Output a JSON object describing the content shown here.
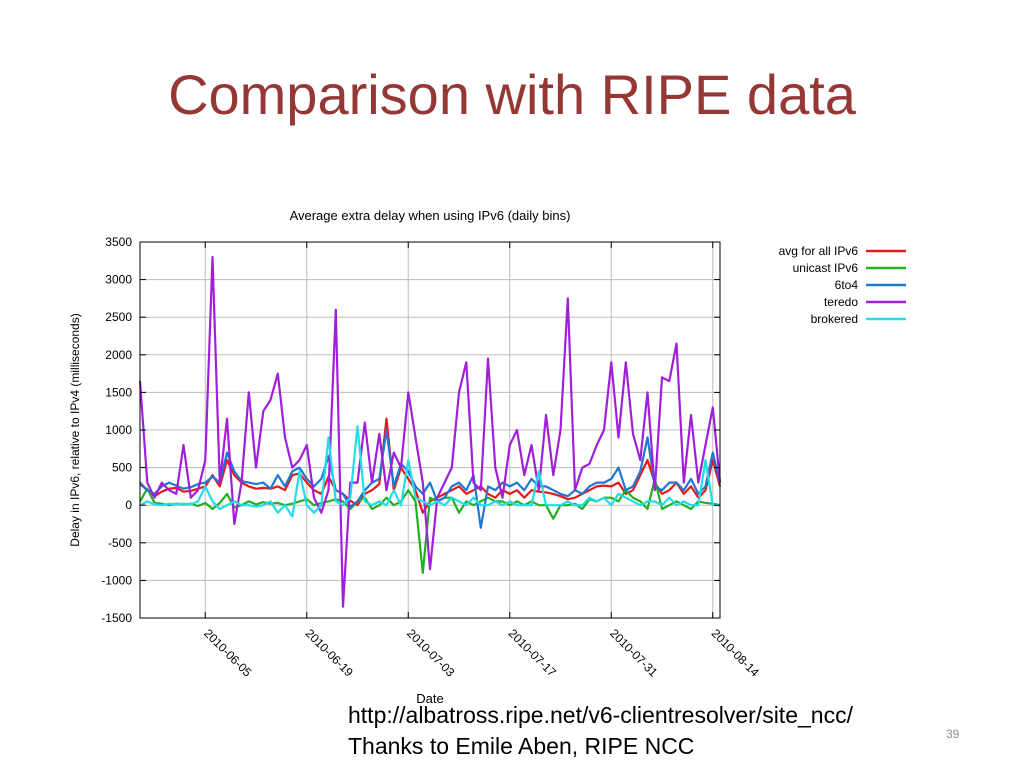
{
  "slide": {
    "title": "Comparison with RIPE data",
    "source_url": "http://albatross.ripe.net/v6-clientresolver/site_ncc/",
    "credit": "Thanks to Emile Aben, RIPE NCC",
    "page_number": "39"
  },
  "chart_data": {
    "type": "line",
    "title": "Average extra delay when using IPv6  (daily bins)",
    "xlabel": "Date",
    "ylabel": "Delay in IPv6, relative to IPv4  (milliseconds)",
    "ylim": [
      -1500,
      3500
    ],
    "yticks": [
      -1500,
      -1000,
      -500,
      0,
      500,
      1000,
      1500,
      2000,
      2500,
      3000,
      3500
    ],
    "xlim": [
      "2010-05-27",
      "2010-08-15"
    ],
    "xticks": [
      "2010-06-05",
      "2010-06-19",
      "2010-07-03",
      "2010-07-17",
      "2010-07-31",
      "2010-08-14"
    ],
    "grid": true,
    "legend": "right",
    "x": [
      "2010-05-27",
      "2010-05-28",
      "2010-05-29",
      "2010-05-30",
      "2010-05-31",
      "2010-06-01",
      "2010-06-02",
      "2010-06-03",
      "2010-06-04",
      "2010-06-05",
      "2010-06-06",
      "2010-06-07",
      "2010-06-08",
      "2010-06-09",
      "2010-06-10",
      "2010-06-11",
      "2010-06-12",
      "2010-06-13",
      "2010-06-14",
      "2010-06-15",
      "2010-06-16",
      "2010-06-17",
      "2010-06-18",
      "2010-06-19",
      "2010-06-20",
      "2010-06-21",
      "2010-06-22",
      "2010-06-23",
      "2010-06-24",
      "2010-06-25",
      "2010-06-26",
      "2010-06-27",
      "2010-06-28",
      "2010-06-29",
      "2010-06-30",
      "2010-07-01",
      "2010-07-02",
      "2010-07-03",
      "2010-07-04",
      "2010-07-05",
      "2010-07-06",
      "2010-07-07",
      "2010-07-08",
      "2010-07-09",
      "2010-07-10",
      "2010-07-11",
      "2010-07-12",
      "2010-07-13",
      "2010-07-14",
      "2010-07-15",
      "2010-07-16",
      "2010-07-17",
      "2010-07-18",
      "2010-07-19",
      "2010-07-20",
      "2010-07-21",
      "2010-07-22",
      "2010-07-23",
      "2010-07-24",
      "2010-07-25",
      "2010-07-26",
      "2010-07-27",
      "2010-07-28",
      "2010-07-29",
      "2010-07-30",
      "2010-07-31",
      "2010-08-01",
      "2010-08-02",
      "2010-08-03",
      "2010-08-04",
      "2010-08-05",
      "2010-08-06",
      "2010-08-07",
      "2010-08-08",
      "2010-08-09",
      "2010-08-10",
      "2010-08-11",
      "2010-08-12",
      "2010-08-13",
      "2010-08-14",
      "2010-08-15"
    ],
    "series": [
      {
        "name": "avg for all IPv6",
        "color": "#e41a1c",
        "values": [
          300,
          200,
          120,
          180,
          220,
          230,
          180,
          190,
          220,
          250,
          400,
          250,
          600,
          400,
          300,
          250,
          220,
          230,
          220,
          250,
          200,
          400,
          420,
          300,
          200,
          150,
          380,
          200,
          150,
          60,
          0,
          150,
          200,
          280,
          1150,
          200,
          500,
          350,
          200,
          -100,
          50,
          100,
          150,
          200,
          250,
          150,
          200,
          250,
          150,
          100,
          200,
          150,
          200,
          100,
          200,
          180,
          170,
          150,
          120,
          80,
          100,
          150,
          200,
          250,
          260,
          250,
          300,
          150,
          200,
          400,
          600,
          300,
          150,
          200,
          300,
          150,
          250,
          100,
          200,
          600,
          250
        ]
      },
      {
        "name": "unicast IPv6",
        "color": "#22b022",
        "values": [
          50,
          220,
          30,
          20,
          0,
          20,
          10,
          20,
          -10,
          30,
          -50,
          30,
          150,
          -30,
          0,
          50,
          10,
          40,
          20,
          30,
          0,
          20,
          50,
          80,
          0,
          30,
          50,
          80,
          50,
          -50,
          50,
          100,
          -50,
          0,
          100,
          0,
          50,
          200,
          50,
          -900,
          100,
          50,
          100,
          100,
          -100,
          50,
          0,
          50,
          100,
          50,
          50,
          0,
          50,
          0,
          50,
          0,
          0,
          -180,
          0,
          0,
          20,
          -50,
          80,
          50,
          100,
          100,
          50,
          200,
          100,
          50,
          -50,
          350,
          -50,
          0,
          50,
          0,
          -50,
          50,
          30,
          20,
          0
        ]
      },
      {
        "name": "6to4",
        "color": "#1f78d1",
        "values": [
          280,
          200,
          150,
          250,
          300,
          260,
          220,
          240,
          280,
          300,
          380,
          300,
          700,
          450,
          320,
          300,
          280,
          300,
          220,
          400,
          250,
          450,
          500,
          350,
          250,
          350,
          650,
          200,
          150,
          -20,
          50,
          200,
          300,
          350,
          1000,
          250,
          550,
          450,
          250,
          150,
          300,
          50,
          100,
          250,
          300,
          200,
          400,
          -300,
          250,
          200,
          300,
          250,
          300,
          200,
          350,
          250,
          250,
          200,
          150,
          120,
          200,
          150,
          250,
          300,
          300,
          350,
          500,
          200,
          250,
          450,
          900,
          250,
          200,
          300,
          300,
          200,
          350,
          150,
          250,
          700,
          300
        ]
      },
      {
        "name": "teredo",
        "color": "#a020d9",
        "values": [
          1650,
          300,
          100,
          300,
          200,
          150,
          800,
          100,
          200,
          600,
          3300,
          300,
          1150,
          -250,
          300,
          1500,
          500,
          1250,
          1400,
          1750,
          900,
          500,
          600,
          800,
          100,
          -100,
          200,
          2600,
          -1350,
          300,
          300,
          1100,
          300,
          950,
          200,
          700,
          500,
          1500,
          900,
          300,
          -850,
          100,
          300,
          500,
          1500,
          1900,
          300,
          200,
          1950,
          500,
          100,
          800,
          1000,
          400,
          800,
          200,
          1200,
          400,
          1000,
          2750,
          200,
          500,
          550,
          800,
          1000,
          1900,
          900,
          1900,
          950,
          600,
          1500,
          200,
          1700,
          1650,
          2150,
          300,
          1200,
          300,
          800,
          1300,
          300
        ]
      },
      {
        "name": "brokered",
        "color": "#22dde8",
        "values": [
          0,
          50,
          10,
          0,
          20,
          10,
          20,
          10,
          50,
          250,
          50,
          -50,
          0,
          50,
          0,
          0,
          -20,
          0,
          50,
          -100,
          0,
          -150,
          450,
          0,
          -100,
          0,
          900,
          50,
          0,
          100,
          1050,
          50,
          0,
          50,
          0,
          200,
          0,
          600,
          100,
          50,
          0,
          50,
          0,
          100,
          50,
          0,
          100,
          0,
          0,
          50,
          0,
          50,
          0,
          0,
          0,
          450,
          0,
          0,
          0,
          50,
          0,
          0,
          100,
          50,
          100,
          0,
          150,
          100,
          50,
          0,
          50,
          50,
          0,
          100,
          0,
          50,
          0,
          0,
          600,
          0,
          0
        ]
      }
    ]
  }
}
